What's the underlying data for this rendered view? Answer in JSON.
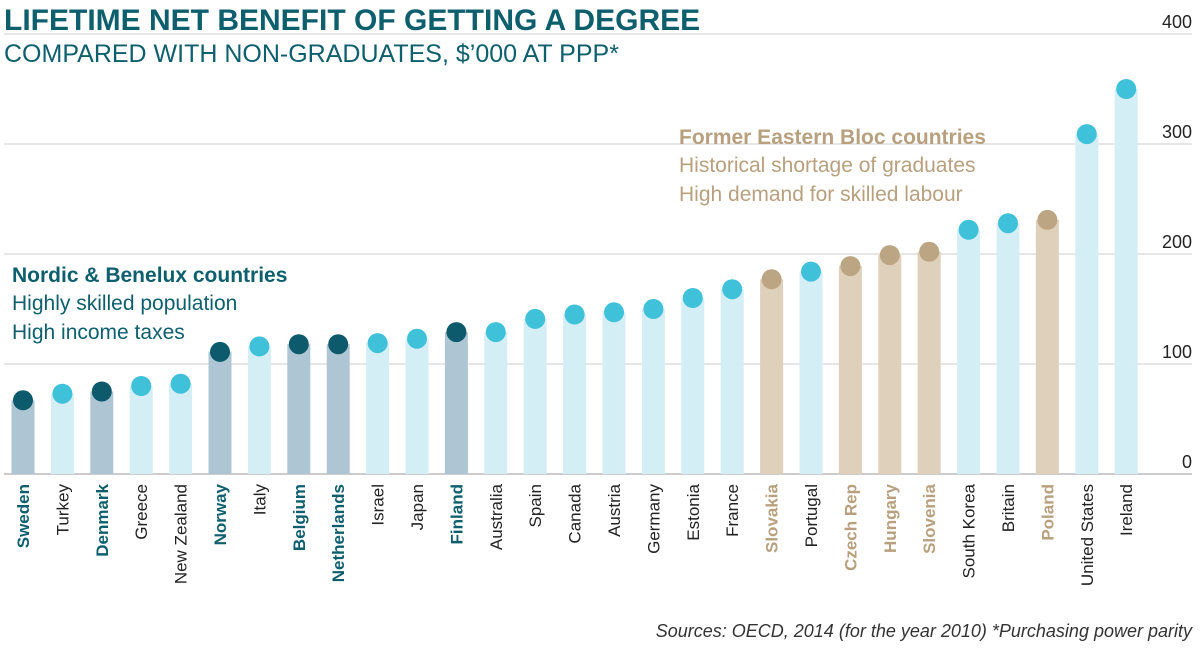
{
  "title": "LIFETIME NET BENEFIT OF GETTING A DEGREE",
  "subtitle": "COMPARED WITH NON-GRADUATES, $’000 AT PPP*",
  "source": "Sources: OECD, 2014 (for the year 2010)   *Purchasing power parity",
  "colors": {
    "default_bar": "#d4eef6",
    "default_dot": "#3fc1d9",
    "nordic_bar": "#aec6d3",
    "nordic_dot": "#0c5a6c",
    "eastern_bar": "#dfd0bb",
    "eastern_dot": "#bba583",
    "nordic_text": "#0e5f6e",
    "eastern_text": "#b8a07e",
    "gridline": "#cccccc"
  },
  "annotations": {
    "nordic": {
      "heading": "Nordic & Benelux countries",
      "line1": "Highly skilled population",
      "line2": "High income taxes"
    },
    "eastern": {
      "heading": "Former Eastern Bloc countries",
      "line1": "Historical shortage of graduates",
      "line2": "High demand for skilled labour"
    }
  },
  "chart_data": {
    "type": "bar",
    "title": "LIFETIME NET BENEFIT OF GETTING A DEGREE",
    "subtitle": "COMPARED WITH NON-GRADUATES, $’000 AT PPP*",
    "xlabel": "",
    "ylabel": "",
    "ylim": [
      0,
      400
    ],
    "yticks": [
      0,
      100,
      200,
      300,
      400
    ],
    "grid": true,
    "categories": [
      "Sweden",
      "Turkey",
      "Denmark",
      "Greece",
      "New Zealand",
      "Norway",
      "Italy",
      "Belgium",
      "Netherlands",
      "Israel",
      "Japan",
      "Finland",
      "Australia",
      "Spain",
      "Canada",
      "Austria",
      "Germany",
      "Estonia",
      "France",
      "Slovakia",
      "Portugal",
      "Czech Rep",
      "Hungary",
      "Slovenia",
      "South Korea",
      "Britain",
      "Poland",
      "United States",
      "Ireland"
    ],
    "values": [
      67,
      73,
      75,
      80,
      82,
      111,
      116,
      118,
      118,
      119,
      123,
      129,
      129,
      141,
      145,
      147,
      150,
      160,
      168,
      177,
      184,
      189,
      199,
      202,
      222,
      228,
      231,
      309,
      350
    ],
    "groups": [
      "nordic",
      "default",
      "nordic",
      "default",
      "default",
      "nordic",
      "default",
      "nordic",
      "nordic",
      "default",
      "default",
      "nordic",
      "default",
      "default",
      "default",
      "default",
      "default",
      "default",
      "default",
      "eastern",
      "default",
      "eastern",
      "eastern",
      "eastern",
      "default",
      "default",
      "eastern",
      "default",
      "default"
    ]
  }
}
